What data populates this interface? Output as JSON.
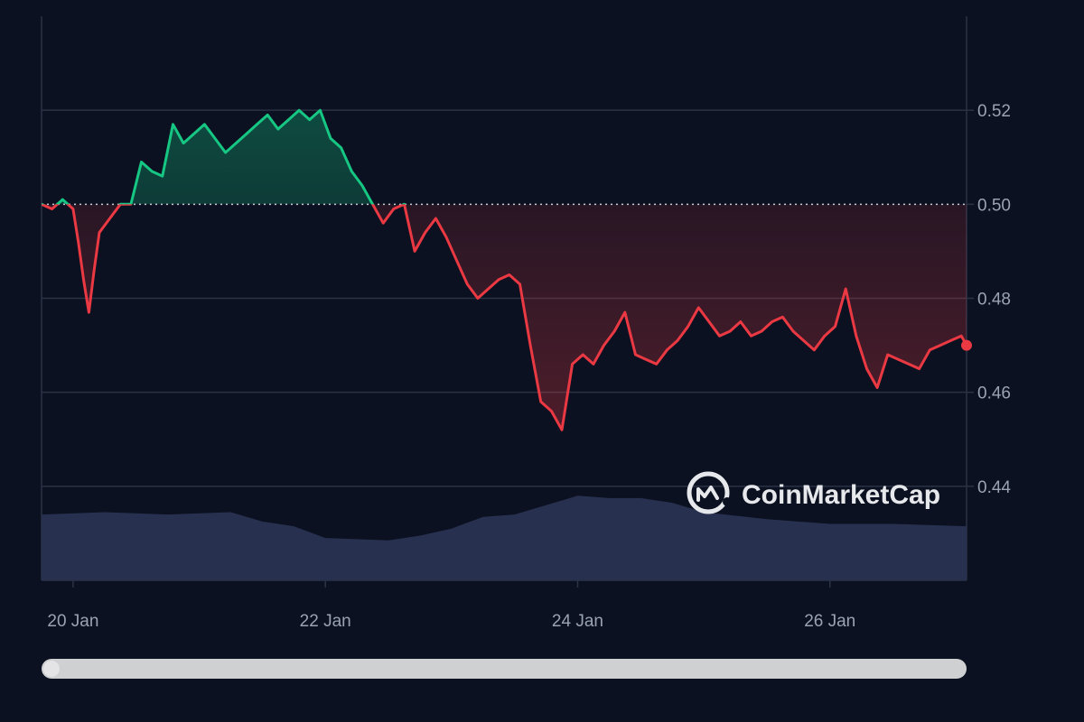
{
  "chart_data": {
    "type": "area",
    "title": "",
    "xlabel": "",
    "ylabel": "",
    "x_ticks": [
      "20 Jan",
      "22 Jan",
      "24 Jan",
      "26 Jan"
    ],
    "y_ticks": [
      "0.52",
      "0.50",
      "0.48",
      "0.46",
      "0.44"
    ],
    "ylim": [
      0.42,
      0.54
    ],
    "baseline": 0.5,
    "watermark": "CoinMarketCap",
    "grid": "horizontal",
    "colors": {
      "above_baseline": "#16c784",
      "below_baseline": "#ea3943",
      "volume": "#27314f",
      "grid": "#2b3245",
      "baseline": "#c8ccd4"
    },
    "price_series": {
      "name": "",
      "points": [
        [
          "19 Jan 18:00",
          0.5
        ],
        [
          "19 Jan 20:00",
          0.499
        ],
        [
          "19 Jan 22:00",
          0.501
        ],
        [
          "20 Jan 00:00",
          0.499
        ],
        [
          "20 Jan 01:00",
          0.492
        ],
        [
          "20 Jan 02:00",
          0.484
        ],
        [
          "20 Jan 03:00",
          0.477
        ],
        [
          "20 Jan 04:00",
          0.486
        ],
        [
          "20 Jan 05:00",
          0.494
        ],
        [
          "20 Jan 07:00",
          0.497
        ],
        [
          "20 Jan 09:00",
          0.5
        ],
        [
          "20 Jan 11:00",
          0.5
        ],
        [
          "20 Jan 13:00",
          0.509
        ],
        [
          "20 Jan 15:00",
          0.507
        ],
        [
          "20 Jan 17:00",
          0.506
        ],
        [
          "20 Jan 19:00",
          0.517
        ],
        [
          "20 Jan 21:00",
          0.513
        ],
        [
          "20 Jan 23:00",
          0.515
        ],
        [
          "21 Jan 01:00",
          0.517
        ],
        [
          "21 Jan 03:00",
          0.514
        ],
        [
          "21 Jan 05:00",
          0.511
        ],
        [
          "21 Jan 07:00",
          0.513
        ],
        [
          "21 Jan 09:00",
          0.515
        ],
        [
          "21 Jan 11:00",
          0.517
        ],
        [
          "21 Jan 13:00",
          0.519
        ],
        [
          "21 Jan 15:00",
          0.516
        ],
        [
          "21 Jan 17:00",
          0.518
        ],
        [
          "21 Jan 19:00",
          0.52
        ],
        [
          "21 Jan 21:00",
          0.518
        ],
        [
          "21 Jan 23:00",
          0.52
        ],
        [
          "22 Jan 01:00",
          0.514
        ],
        [
          "22 Jan 03:00",
          0.512
        ],
        [
          "22 Jan 05:00",
          0.507
        ],
        [
          "22 Jan 07:00",
          0.504
        ],
        [
          "22 Jan 09:00",
          0.5
        ],
        [
          "22 Jan 11:00",
          0.496
        ],
        [
          "22 Jan 13:00",
          0.499
        ],
        [
          "22 Jan 15:00",
          0.5
        ],
        [
          "22 Jan 17:00",
          0.49
        ],
        [
          "22 Jan 19:00",
          0.494
        ],
        [
          "22 Jan 21:00",
          0.497
        ],
        [
          "22 Jan 23:00",
          0.493
        ],
        [
          "23 Jan 01:00",
          0.488
        ],
        [
          "23 Jan 03:00",
          0.483
        ],
        [
          "23 Jan 05:00",
          0.48
        ],
        [
          "23 Jan 07:00",
          0.482
        ],
        [
          "23 Jan 09:00",
          0.484
        ],
        [
          "23 Jan 11:00",
          0.485
        ],
        [
          "23 Jan 13:00",
          0.483
        ],
        [
          "23 Jan 15:00",
          0.47
        ],
        [
          "23 Jan 17:00",
          0.458
        ],
        [
          "23 Jan 19:00",
          0.456
        ],
        [
          "23 Jan 21:00",
          0.452
        ],
        [
          "23 Jan 23:00",
          0.466
        ],
        [
          "24 Jan 01:00",
          0.468
        ],
        [
          "24 Jan 03:00",
          0.466
        ],
        [
          "24 Jan 05:00",
          0.47
        ],
        [
          "24 Jan 07:00",
          0.473
        ],
        [
          "24 Jan 09:00",
          0.477
        ],
        [
          "24 Jan 11:00",
          0.468
        ],
        [
          "24 Jan 13:00",
          0.467
        ],
        [
          "24 Jan 15:00",
          0.466
        ],
        [
          "24 Jan 17:00",
          0.469
        ],
        [
          "24 Jan 19:00",
          0.471
        ],
        [
          "24 Jan 21:00",
          0.474
        ],
        [
          "24 Jan 23:00",
          0.478
        ],
        [
          "25 Jan 01:00",
          0.475
        ],
        [
          "25 Jan 03:00",
          0.472
        ],
        [
          "25 Jan 05:00",
          0.473
        ],
        [
          "25 Jan 07:00",
          0.475
        ],
        [
          "25 Jan 09:00",
          0.472
        ],
        [
          "25 Jan 11:00",
          0.473
        ],
        [
          "25 Jan 13:00",
          0.475
        ],
        [
          "25 Jan 15:00",
          0.476
        ],
        [
          "25 Jan 17:00",
          0.473
        ],
        [
          "25 Jan 19:00",
          0.471
        ],
        [
          "25 Jan 21:00",
          0.469
        ],
        [
          "25 Jan 23:00",
          0.472
        ],
        [
          "26 Jan 01:00",
          0.474
        ],
        [
          "26 Jan 03:00",
          0.482
        ],
        [
          "26 Jan 05:00",
          0.472
        ],
        [
          "26 Jan 07:00",
          0.465
        ],
        [
          "26 Jan 09:00",
          0.461
        ],
        [
          "26 Jan 11:00",
          0.468
        ],
        [
          "26 Jan 13:00",
          0.467
        ],
        [
          "26 Jan 15:00",
          0.466
        ],
        [
          "26 Jan 17:00",
          0.465
        ],
        [
          "26 Jan 19:00",
          0.469
        ],
        [
          "26 Jan 21:00",
          0.47
        ],
        [
          "26 Jan 23:00",
          0.471
        ],
        [
          "27 Jan 01:00",
          0.472
        ],
        [
          "27 Jan 02:00",
          0.47
        ]
      ]
    },
    "volume_series": {
      "name": "",
      "points": [
        [
          "19 Jan 18:00",
          0.434
        ],
        [
          "20 Jan 06:00",
          0.4345
        ],
        [
          "20 Jan 18:00",
          0.434
        ],
        [
          "21 Jan 06:00",
          0.4345
        ],
        [
          "21 Jan 12:00",
          0.4325
        ],
        [
          "21 Jan 18:00",
          0.4315
        ],
        [
          "22 Jan 00:00",
          0.429
        ],
        [
          "22 Jan 12:00",
          0.4285
        ],
        [
          "22 Jan 18:00",
          0.4295
        ],
        [
          "23 Jan 00:00",
          0.431
        ],
        [
          "23 Jan 06:00",
          0.4335
        ],
        [
          "23 Jan 12:00",
          0.434
        ],
        [
          "23 Jan 18:00",
          0.436
        ],
        [
          "24 Jan 00:00",
          0.438
        ],
        [
          "24 Jan 06:00",
          0.4375
        ],
        [
          "24 Jan 12:00",
          0.4375
        ],
        [
          "24 Jan 18:00",
          0.4365
        ],
        [
          "25 Jan 00:00",
          0.4345
        ],
        [
          "25 Jan 12:00",
          0.433
        ],
        [
          "26 Jan 00:00",
          0.432
        ],
        [
          "26 Jan 12:00",
          0.432
        ],
        [
          "27 Jan 02:00",
          0.4315
        ]
      ]
    }
  }
}
